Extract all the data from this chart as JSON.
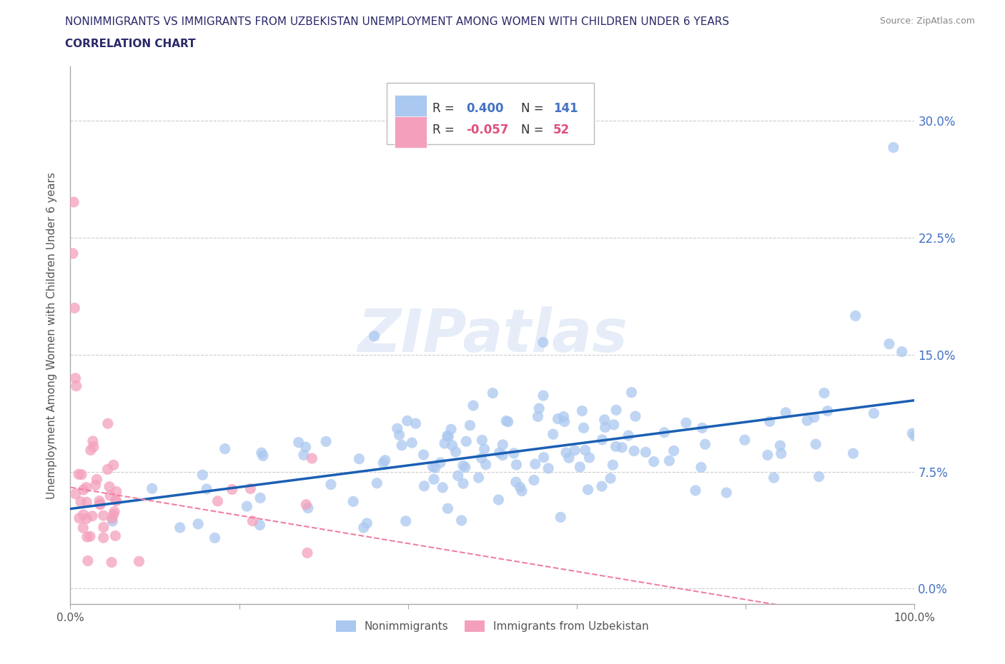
{
  "title_line1": "NONIMMIGRANTS VS IMMIGRANTS FROM UZBEKISTAN UNEMPLOYMENT AMONG WOMEN WITH CHILDREN UNDER 6 YEARS",
  "title_line2": "CORRELATION CHART",
  "source": "Source: ZipAtlas.com",
  "ylabel": "Unemployment Among Women with Children Under 6 years",
  "xlim": [
    0.0,
    1.0
  ],
  "ylim": [
    -0.01,
    0.335
  ],
  "yticks": [
    0.0,
    0.075,
    0.15,
    0.225,
    0.3
  ],
  "ytick_labels": [
    "0.0%",
    "7.5%",
    "15.0%",
    "22.5%",
    "30.0%"
  ],
  "nonimmigrant_color": "#aac8f0",
  "immigrant_color": "#f4a0bc",
  "nonimmigrant_line_color": "#1a5fb4",
  "immigrant_line_color": "#f080a0",
  "R_nonimmigrant": 0.4,
  "N_nonimmigrant": 141,
  "R_immigrant": -0.057,
  "N_immigrant": 52,
  "watermark": "ZIPatlas",
  "background_color": "#ffffff",
  "grid_color": "#cccccc",
  "title_color": "#2a2a6a",
  "axis_color": "#aaaaaa",
  "right_tick_color": "#4472c4"
}
